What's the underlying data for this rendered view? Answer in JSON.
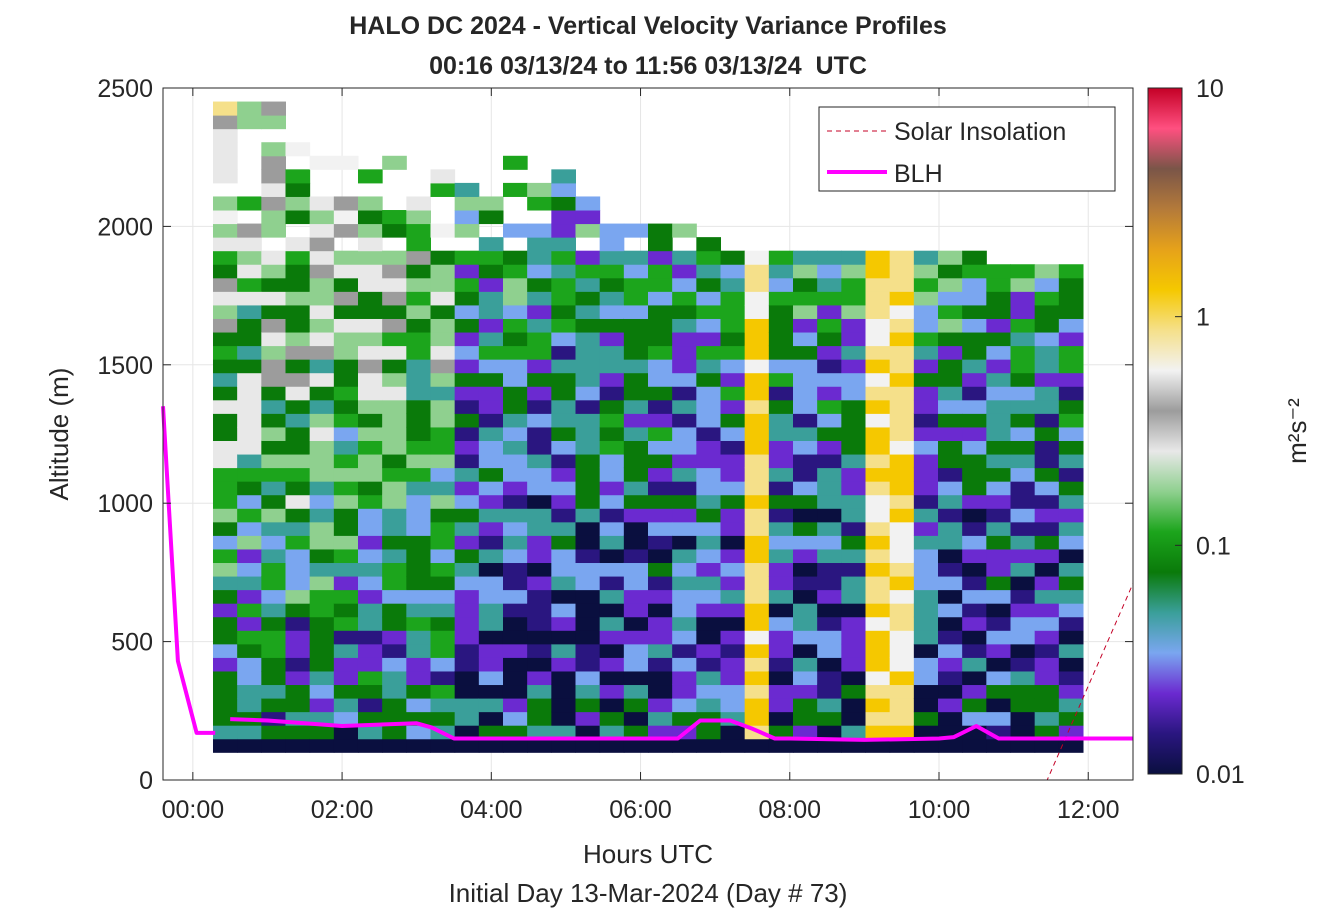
{
  "chart_data": {
    "type": "heatmap",
    "title": "HALO DC 2024 - Vertical Velocity Variance Profiles",
    "subtitle": "00:16 03/13/24 to 11:56 03/13/24  UTC",
    "xlabel": "Hours UTC",
    "xlabel2": "Initial Day 13-Mar-2024 (Day # 73)",
    "ylabel": "Altitude (m)",
    "xlim": [
      -0.4,
      12.6
    ],
    "ylim": [
      0,
      2500
    ],
    "x_ticks": [
      0,
      2,
      4,
      6,
      8,
      10,
      12
    ],
    "x_tick_labels": [
      "00:00",
      "02:00",
      "04:00",
      "06:00",
      "08:00",
      "10:00",
      "12:00"
    ],
    "y_ticks": [
      0,
      500,
      1000,
      1500,
      2000,
      2500
    ],
    "y_tick_labels": [
      "0",
      "500",
      "1000",
      "1500",
      "2000",
      "2500"
    ],
    "grid": true,
    "colorbar": {
      "label": "m²s⁻²",
      "scale": "log",
      "range": [
        0.01,
        10
      ],
      "ticks": [
        0.01,
        0.1,
        1,
        10
      ],
      "tick_labels": [
        "0.01",
        "0.1",
        "1",
        "10"
      ],
      "colors": [
        "#0a0f3f",
        "#2a1680",
        "#6b2ad0",
        "#7aa6f0",
        "#3a9f9a",
        "#0a7a0a",
        "#1ca51c",
        "#8fd08f",
        "#e8e8e8",
        "#9c9c9c",
        "#f2f2f2",
        "#f5e08a",
        "#f5c800",
        "#e6a21a",
        "#b47a3a",
        "#7a5548",
        "#ff5080",
        "#c40026"
      ]
    },
    "legend": {
      "placement": "top-right",
      "entries": [
        "Solar Insolation",
        "BLH"
      ]
    },
    "series": [
      {
        "name": "Solar Insolation",
        "color": "#c40026",
        "style": "dashed",
        "x": [
          -0.4,
          11.45,
          12.6
        ],
        "y": [
          0,
          0,
          710
        ]
      },
      {
        "name": "BLH",
        "color": "#ff00ff",
        "style": "solid",
        "segments": [
          {
            "x": [
              -0.4,
              -0.2,
              0.05,
              0.3
            ],
            "y": [
              1350,
              430,
              170,
              170
            ]
          },
          {
            "x": [
              0.5,
              1.0,
              2.0,
              2.5,
              3.0,
              3.2,
              3.5,
              4.0,
              5.0,
              6.0,
              6.5,
              6.8,
              7.2,
              7.5,
              7.8,
              8.0,
              9.0,
              10.0,
              10.2,
              10.5,
              10.8,
              12.0,
              12.6
            ],
            "y": [
              220,
              215,
              195,
              200,
              205,
              190,
              150,
              150,
              150,
              150,
              150,
              215,
              215,
              185,
              150,
              150,
              145,
              150,
              155,
              195,
              150,
              150,
              150
            ]
          }
        ]
      }
    ],
    "heatmap": {
      "x_range_hours": [
        0.27,
        11.93
      ],
      "altitude_range_m": [
        100,
        2500
      ],
      "note_values": "vertical velocity variance, log scale 0.01-10"
    }
  }
}
